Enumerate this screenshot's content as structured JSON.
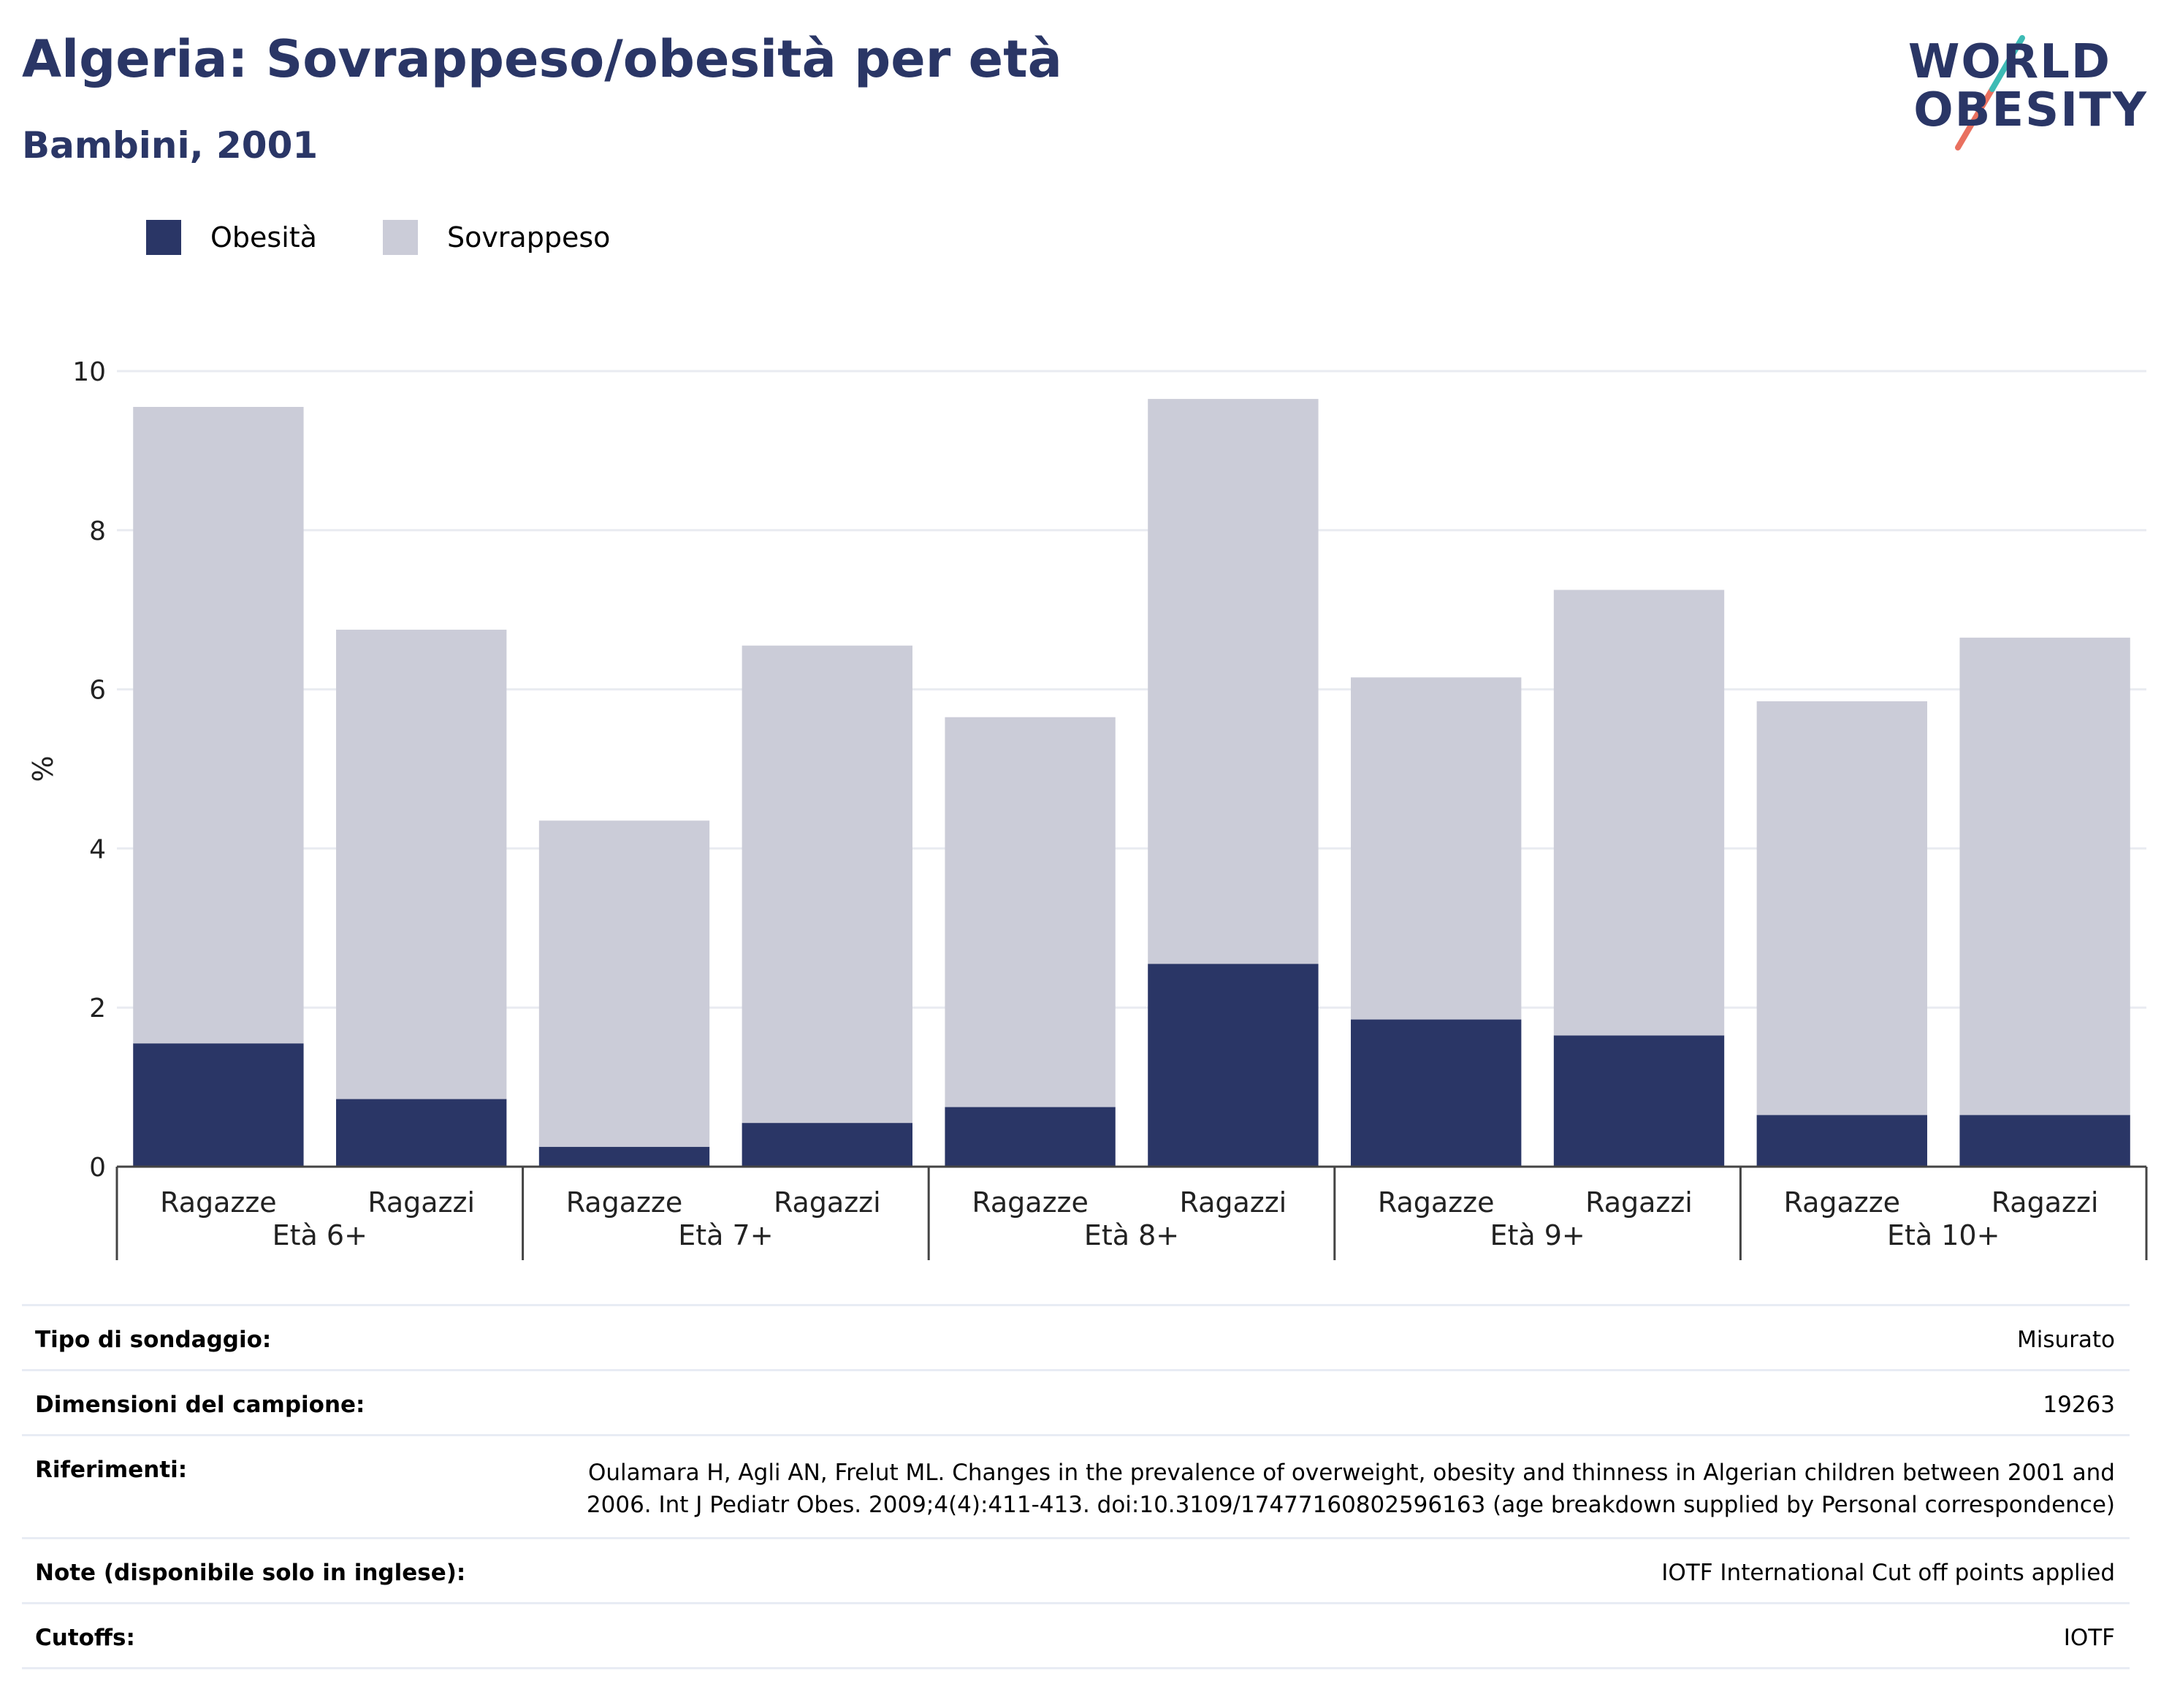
{
  "header": {
    "title": "Algeria: Sovrappeso/obesità per età",
    "subtitle": "Bambini, 2001"
  },
  "logo": {
    "line1": "WORLD",
    "line2": "OBESITY"
  },
  "legend": {
    "items": [
      {
        "label": "Obesità",
        "color": "#2a3666"
      },
      {
        "label": "Sovrappeso",
        "color": "#cbccd8"
      }
    ]
  },
  "colors": {
    "obesity": "#2a3666",
    "overweight": "#cbccd8",
    "grid": "#e9ebf1",
    "axis": "#444444",
    "logo_teal": "#3dbbb5",
    "logo_coral": "#e9705f"
  },
  "chart_data": {
    "type": "bar",
    "stacked": true,
    "ylabel": "%",
    "ylim": [
      0,
      10
    ],
    "yticks": [
      0,
      2,
      4,
      6,
      8,
      10
    ],
    "grid": true,
    "legend_position": "top-left",
    "groups": [
      {
        "label": "Età 6+",
        "categories": [
          "Ragazze",
          "Ragazzi"
        ]
      },
      {
        "label": "Età 7+",
        "categories": [
          "Ragazze",
          "Ragazzi"
        ]
      },
      {
        "label": "Età 8+",
        "categories": [
          "Ragazze",
          "Ragazzi"
        ]
      },
      {
        "label": "Età 9+",
        "categories": [
          "Ragazze",
          "Ragazzi"
        ]
      },
      {
        "label": "Età 10+",
        "categories": [
          "Ragazze",
          "Ragazzi"
        ]
      }
    ],
    "series": [
      {
        "name": "Obesità",
        "values": [
          1.55,
          0.85,
          0.25,
          0.55,
          0.75,
          2.55,
          1.85,
          1.65,
          0.65,
          0.65
        ]
      },
      {
        "name": "Sovrappeso",
        "values": [
          8.0,
          5.9,
          4.1,
          6.0,
          4.9,
          7.1,
          4.3,
          5.6,
          5.2,
          6.0
        ]
      }
    ]
  },
  "details": {
    "rows": [
      {
        "label": "Tipo di sondaggio:",
        "value": "Misurato"
      },
      {
        "label": "Dimensioni del campione:",
        "value": "19263"
      },
      {
        "label": "Riferimenti:",
        "value": "Oulamara H, Agli AN, Frelut ML. Changes in the prevalence of overweight, obesity and thinness in Algerian children between 2001 and 2006. Int J Pediatr Obes. 2009;4(4):411-413. doi:10.3109/17477160802596163 (age breakdown supplied by Personal correspondence)"
      },
      {
        "label": "Note (disponibile solo in inglese):",
        "value": "IOTF International Cut off points applied"
      },
      {
        "label": "Cutoffs:",
        "value": "IOTF"
      }
    ]
  }
}
